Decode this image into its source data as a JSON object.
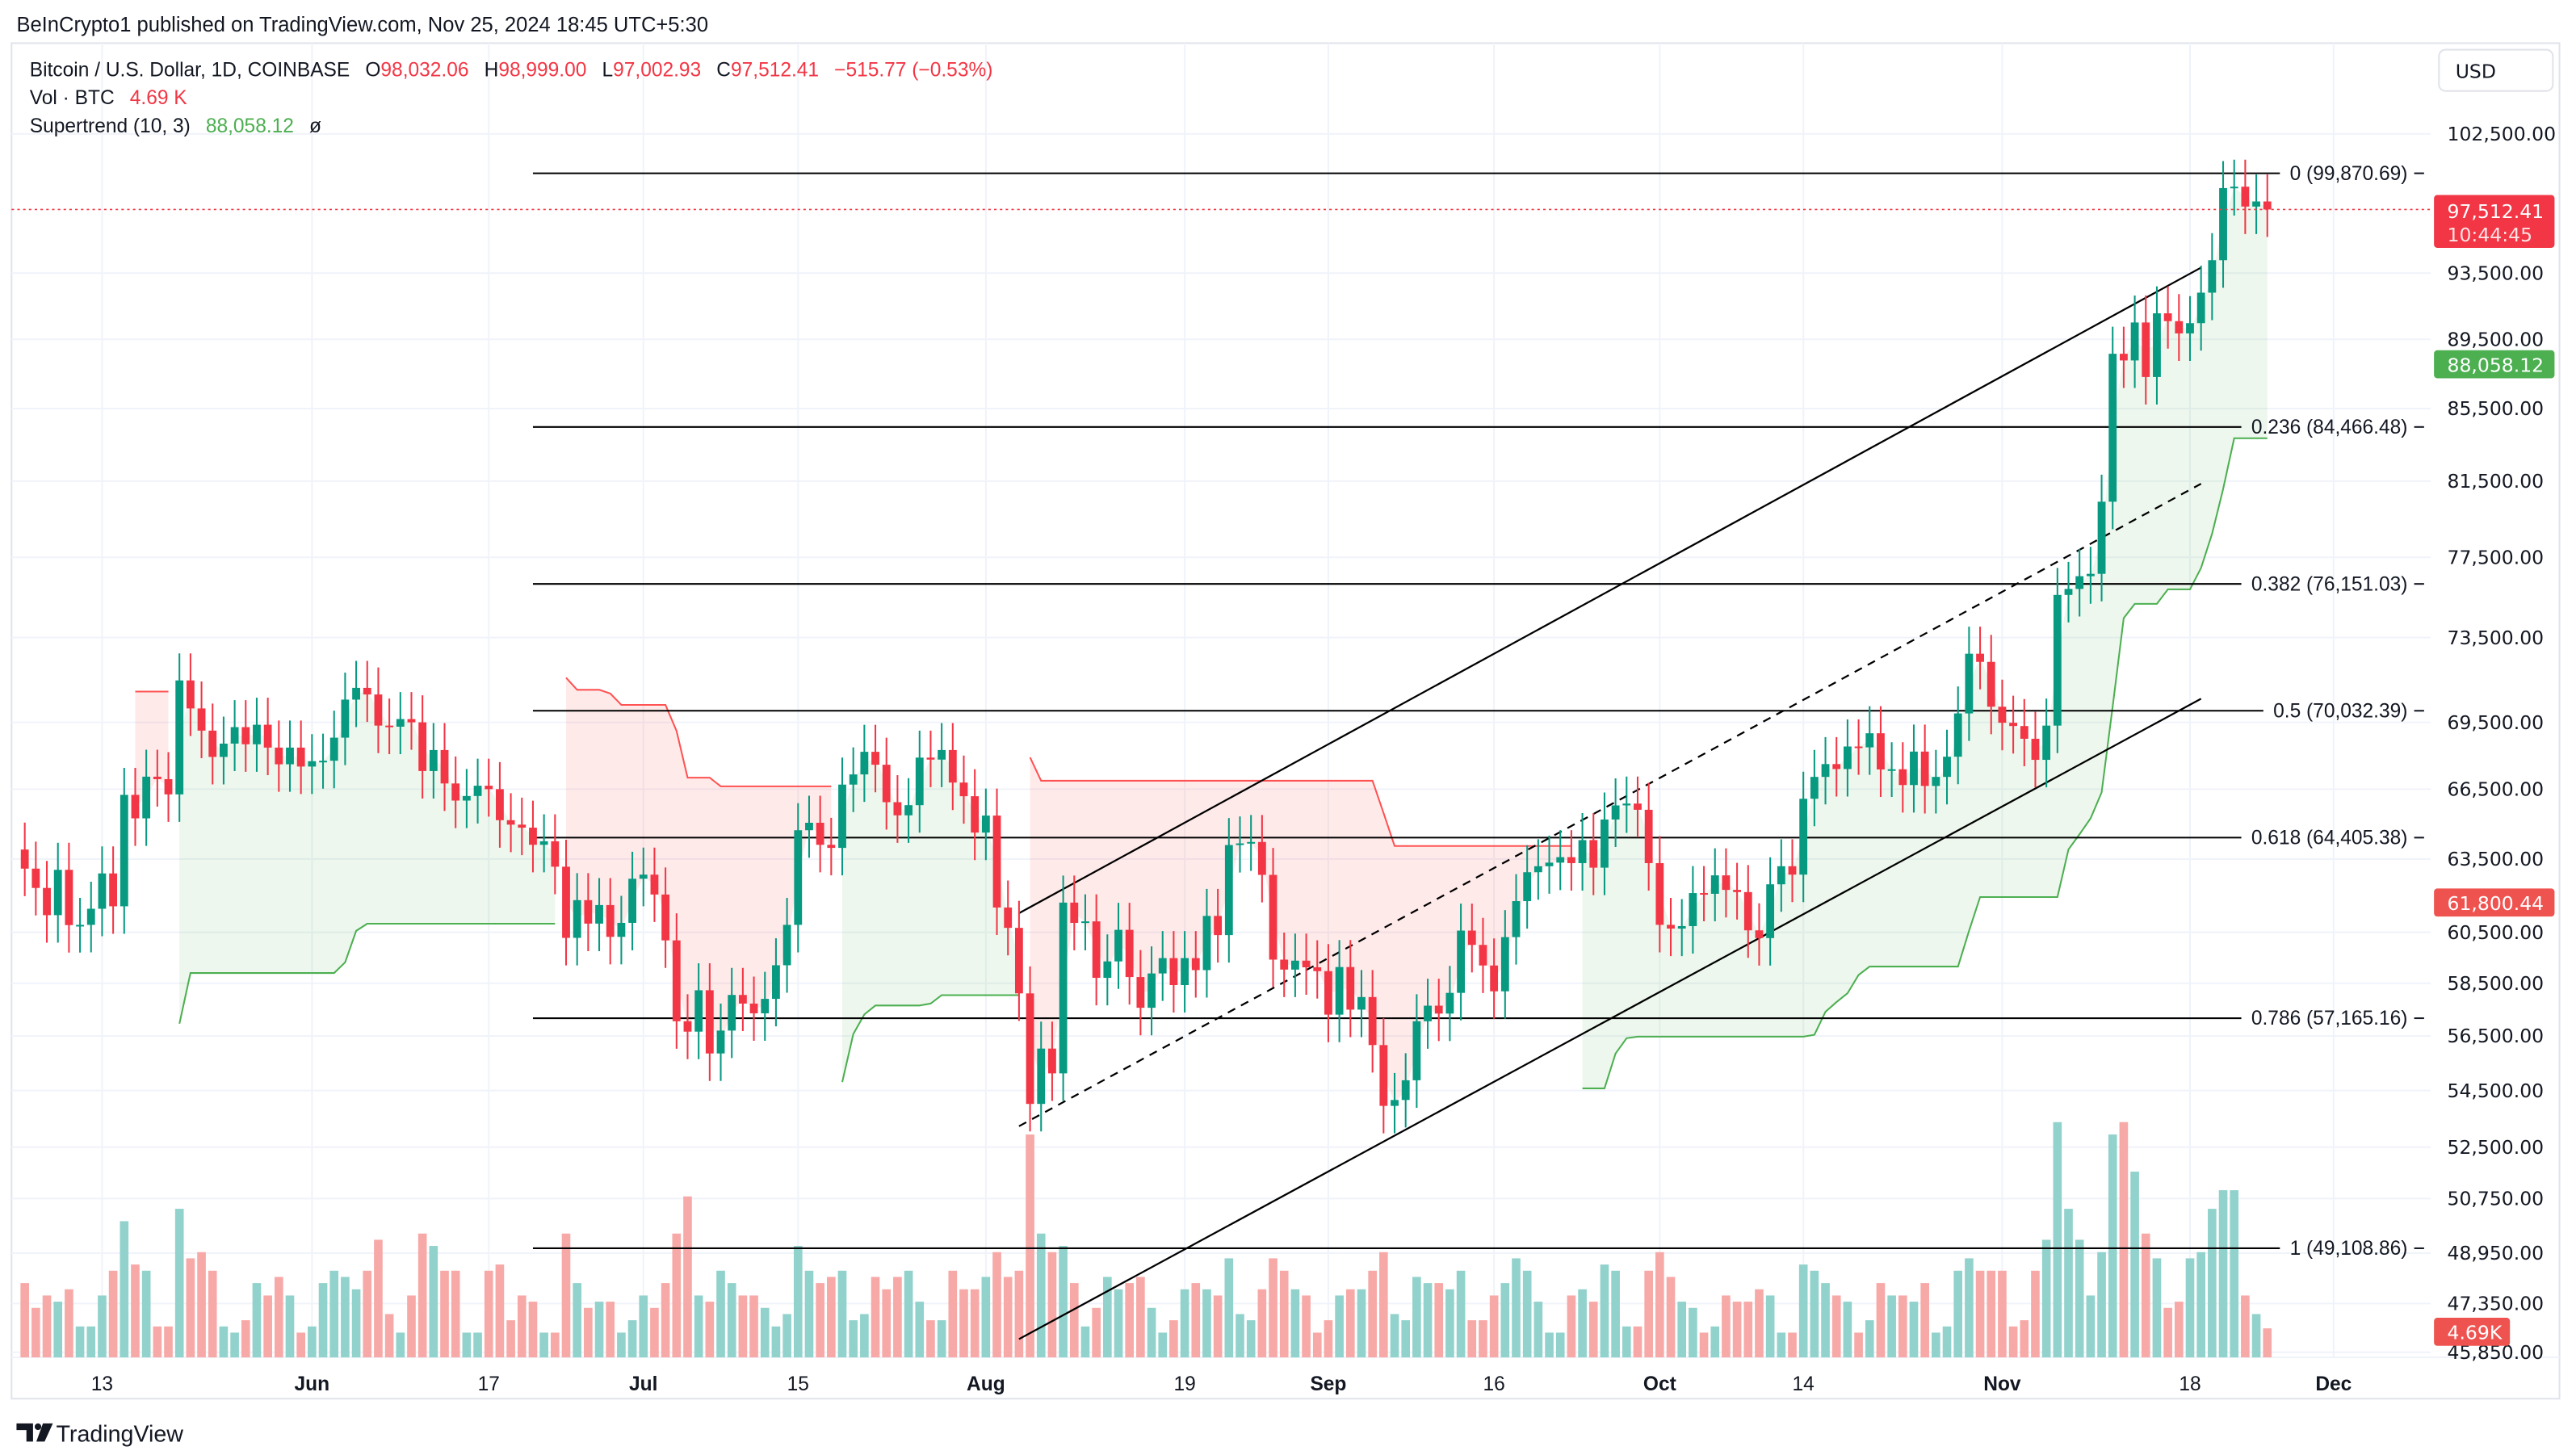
{
  "header": {
    "published": "BeInCrypto1 published on TradingView.com, Nov 25, 2024 18:45 UTC+5:30"
  },
  "legend": {
    "symbol": "Bitcoin / U.S. Dollar, 1D, COINBASE",
    "o_label": "O",
    "o": "98,032.06",
    "h_label": "H",
    "h": "98,999.00",
    "l_label": "L",
    "l": "97,002.93",
    "c_label": "C",
    "c": "97,512.41",
    "change": "−515.77 (−0.53%)",
    "vol_label": "Vol · BTC",
    "vol": "4.69 K",
    "st_label": "Supertrend (10, 3)",
    "st_value": "88,058.12",
    "st_icon": "ø"
  },
  "currency_button": "USD",
  "badges": {
    "last_price": "97,512.41",
    "countdown": "10:44:45",
    "supertrend": "88,058.12",
    "other_level": "61,800.44",
    "volume": "4.69K"
  },
  "branding": {
    "logo_text": "TradingView"
  },
  "colors": {
    "up": "#089981",
    "down": "#f23645",
    "vol_up": "#92d2cc",
    "vol_down": "#f7a9a7",
    "st_up": "#4caf50",
    "st_down": "#ff5252",
    "st_up_fill": "rgba(76,175,80,0.10)",
    "st_down_fill": "rgba(255,82,82,0.12)",
    "badge_last": "#f23645",
    "badge_st": "#4caf50",
    "badge_other": "#ef5350",
    "badge_vol": "#ef5350",
    "grid": "#f0f3fa",
    "fib_line": "#000000"
  },
  "chart_data": {
    "type": "candlestick",
    "yscale": "log",
    "ylim": [
      45850,
      102500
    ],
    "price_ticks": [
      "102,500.00",
      "93,500.00",
      "89,500.00",
      "85,500.00",
      "81,500.00",
      "77,500.00",
      "73,500.00",
      "69,500.00",
      "66,500.00",
      "63,500.00",
      "60,500.00",
      "58,500.00",
      "56,500.00",
      "54,500.00",
      "52,500.00",
      "50,750.00",
      "48,950.00",
      "47,350.00",
      "45,850.00"
    ],
    "time_ticks": [
      {
        "label": "13",
        "date": "2024-05-13",
        "bold": false
      },
      {
        "label": "Jun",
        "date": "2024-06-01",
        "bold": true
      },
      {
        "label": "17",
        "date": "2024-06-17",
        "bold": false
      },
      {
        "label": "Jul",
        "date": "2024-07-01",
        "bold": true
      },
      {
        "label": "15",
        "date": "2024-07-15",
        "bold": false
      },
      {
        "label": "Aug",
        "date": "2024-08-01",
        "bold": true
      },
      {
        "label": "19",
        "date": "2024-08-19",
        "bold": false
      },
      {
        "label": "Sep",
        "date": "2024-09-01",
        "bold": true
      },
      {
        "label": "16",
        "date": "2024-09-16",
        "bold": false
      },
      {
        "label": "Oct",
        "date": "2024-10-01",
        "bold": true
      },
      {
        "label": "14",
        "date": "2024-10-14",
        "bold": false
      },
      {
        "label": "Nov",
        "date": "2024-11-01",
        "bold": true
      },
      {
        "label": "18",
        "date": "2024-11-18",
        "bold": false
      },
      {
        "label": "Dec",
        "date": "2024-12-01",
        "bold": true
      }
    ],
    "first_open": 63900,
    "series_by_month": [
      {
        "month": "2024-05",
        "first_day": 6,
        "close": [
          63100,
          62300,
          61190,
          63050,
          60790,
          60800,
          61450,
          62900,
          61550,
          66250,
          65230,
          67050,
          66940,
          66270,
          71450,
          70140,
          69120,
          67930,
          68530,
          69280,
          68500,
          69390,
          68350,
          67600,
          68350,
          67500
        ],
        "volume_k": [
          12,
          8,
          10,
          9,
          11,
          5,
          5,
          10,
          14,
          22,
          15,
          14,
          5,
          5,
          24,
          16,
          17,
          14,
          5,
          4,
          6,
          12,
          10,
          13,
          10,
          4
        ]
      },
      {
        "month": "2024-06",
        "first_day": 1,
        "close": [
          67740,
          67760,
          68800,
          70550,
          71100,
          70790,
          69350,
          69300,
          69650,
          69500,
          67300,
          68240,
          66750,
          66000,
          66200,
          66650,
          66500,
          65150,
          64960,
          64830,
          64100,
          64250,
          63180,
          60280,
          61800,
          60850,
          61600,
          60320,
          60880,
          62680
        ],
        "volume_k": [
          5,
          12,
          14,
          13,
          11,
          14,
          19,
          7,
          4,
          10,
          20,
          18,
          14,
          14,
          4,
          4,
          14,
          15,
          6,
          10,
          9,
          4,
          4,
          20,
          12,
          8,
          9,
          9,
          4,
          6
        ]
      },
      {
        "month": "2024-07",
        "first_day": 1,
        "close": [
          62850,
          62030,
          60180,
          57050,
          56660,
          58230,
          55850,
          56700,
          58050,
          57720,
          57350,
          57900,
          59200,
          60800,
          64720,
          65040,
          64100,
          63970,
          66700,
          67150,
          68160,
          67580,
          65930,
          65360,
          65800,
          67900,
          67810,
          68240,
          66790,
          66190,
          64620
        ],
        "volume_k": [
          10,
          8,
          12,
          20,
          26,
          10,
          9,
          14,
          12,
          10,
          10,
          8,
          5,
          7,
          18,
          14,
          12,
          13,
          14,
          6,
          7,
          13,
          11,
          13,
          14,
          9,
          6,
          6,
          14,
          11,
          11
        ]
      },
      {
        "month": "2024-08",
        "first_day": 1,
        "close": [
          65350,
          61500,
          60680,
          58110,
          54020,
          56030,
          55120,
          61700,
          60880,
          60940,
          58710,
          59350,
          60600,
          58740,
          57560,
          58880,
          59480,
          58430,
          59480,
          59010,
          61160,
          60390,
          64090,
          64160,
          64220,
          62840,
          59420,
          59030,
          59380,
          59120,
          58970
        ],
        "volume_k": [
          13,
          17,
          13,
          14,
          36,
          20,
          17,
          18,
          12,
          5,
          8,
          13,
          11,
          12,
          13,
          8,
          4,
          6,
          11,
          12,
          11,
          10,
          16,
          7,
          6,
          11,
          16,
          14,
          11,
          10,
          4
        ]
      },
      {
        "month": "2024-09",
        "first_day": 1,
        "close": [
          57300,
          59130,
          57490,
          57970,
          56160,
          53950,
          54160,
          54870,
          57050,
          57640,
          57340,
          58130,
          60570,
          60000,
          59190,
          58190,
          60310,
          61760,
          62950,
          63200,
          63350,
          63580,
          63330,
          64300,
          63140,
          65180,
          65790,
          65870,
          65600,
          63330
        ],
        "volume_k": [
          6,
          10,
          11,
          11,
          14,
          17,
          7,
          6,
          13,
          12,
          12,
          11,
          14,
          6,
          6,
          10,
          12,
          16,
          14,
          9,
          4,
          4,
          10,
          11,
          9,
          15,
          14,
          5,
          5,
          14
        ]
      },
      {
        "month": "2024-10",
        "first_day": 1,
        "close": [
          60800,
          60650,
          60750,
          62090,
          62060,
          62820,
          62220,
          62130,
          60580,
          60270,
          62450,
          63200,
          62850,
          66080,
          67040,
          67610,
          67390,
          68400,
          68360,
          69000,
          67370,
          67380,
          66680,
          68170,
          66640,
          67040,
          67940,
          69910,
          72720,
          72330,
          70220
        ],
        "volume_k": [
          17,
          13,
          9,
          8,
          4,
          5,
          10,
          9,
          9,
          11,
          10,
          4,
          4,
          15,
          14,
          12,
          10,
          9,
          4,
          6,
          12,
          10,
          10,
          9,
          12,
          4,
          5,
          14,
          16,
          14,
          14
        ]
      },
      {
        "month": "2024-11",
        "first_day": 1,
        "close": [
          69480,
          69330,
          68750,
          67800,
          69350,
          75600,
          75900,
          76540,
          76660,
          80400,
          88650,
          88260,
          90500,
          87300,
          91050,
          90580,
          89850,
          90460,
          92300,
          94300,
          98900,
          98990,
          97700,
          98030,
          97512.41
        ],
        "volume_k": [
          14,
          5,
          6,
          14,
          19,
          38,
          24,
          19,
          10,
          17,
          36,
          38,
          30,
          20,
          16,
          8,
          9,
          16,
          17,
          24,
          27,
          27,
          10,
          7,
          4.69
        ]
      }
    ],
    "indicator": {
      "name": "Supertrend",
      "atr_period": 10,
      "multiplier": 3
    },
    "fibonacci": {
      "start_date": "2024-06-21",
      "levels": [
        {
          "ratio": "0",
          "price": 99870.69,
          "label": "0 (99,870.69)"
        },
        {
          "ratio": "0.236",
          "price": 84466.48,
          "label": "0.236 (84,466.48)"
        },
        {
          "ratio": "0.382",
          "price": 76151.03,
          "label": "0.382 (76,151.03)"
        },
        {
          "ratio": "0.5",
          "price": 70032.39,
          "label": "0.5 (70,032.39)"
        },
        {
          "ratio": "0.618",
          "price": 64405.38,
          "label": "0.618 (64,405.38)"
        },
        {
          "ratio": "0.786",
          "price": 57165.16,
          "label": "0.786 (57,165.16)"
        },
        {
          "ratio": "1",
          "price": 49108.86,
          "label": "1 (49,108.86)"
        }
      ]
    },
    "channel": [
      {
        "role": "upper",
        "style": "solid",
        "from": {
          "date": "2024-08-04",
          "price": 61270
        },
        "to": {
          "date": "2024-11-19",
          "price": 93840
        }
      },
      {
        "role": "middle",
        "style": "dashed",
        "from": {
          "date": "2024-08-04",
          "price": 53230
        },
        "to": {
          "date": "2024-11-19",
          "price": 81360
        }
      },
      {
        "role": "lower",
        "style": "solid",
        "from": {
          "date": "2024-08-04",
          "price": 46250
        },
        "to": {
          "date": "2024-11-19",
          "price": 70590
        }
      }
    ],
    "last_price": 97512.41
  }
}
